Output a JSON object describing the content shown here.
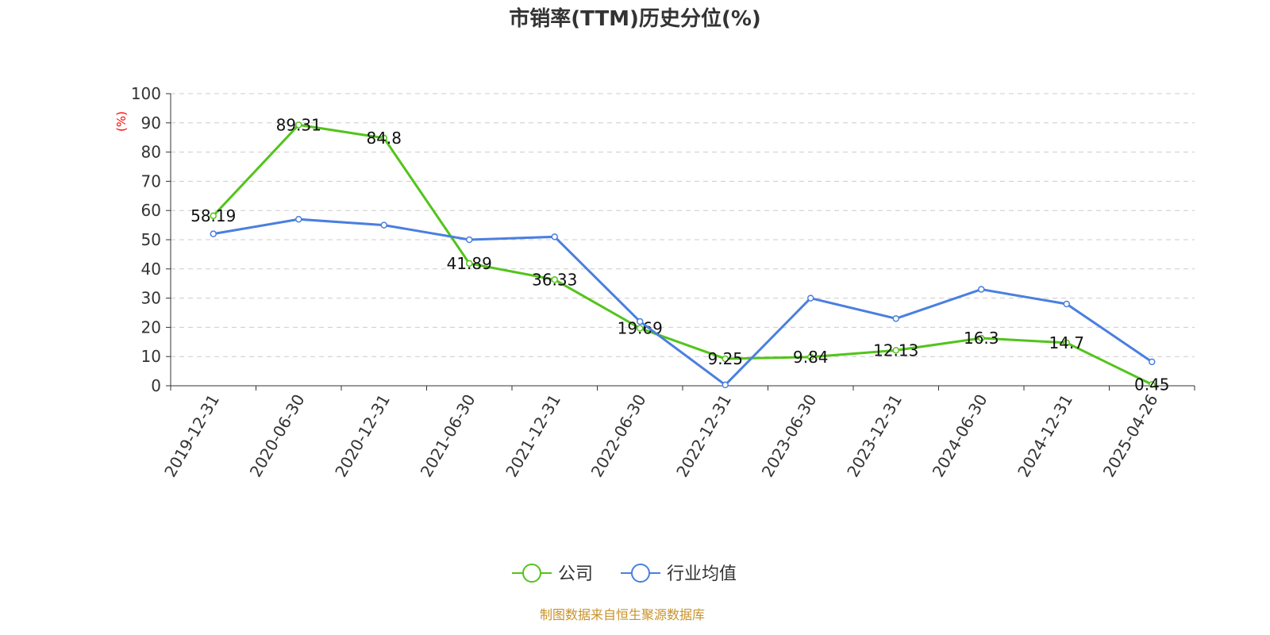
{
  "chart_data": {
    "type": "line",
    "title": "市销率(TTM)历史分位(%)",
    "ylabel": "(%)",
    "ylim": [
      0,
      100
    ],
    "yticks": [
      0,
      10,
      20,
      30,
      40,
      50,
      60,
      70,
      80,
      90,
      100
    ],
    "grid": true,
    "legend_placement": "bottom",
    "categories": [
      "2019-12-31",
      "2020-06-30",
      "2020-12-31",
      "2021-06-30",
      "2021-12-31",
      "2022-06-30",
      "2022-12-31",
      "2023-06-30",
      "2023-12-31",
      "2024-06-30",
      "2024-12-31",
      "2025-04-26"
    ],
    "series": [
      {
        "name": "公司",
        "color": "#52c41a",
        "labels": true,
        "values": [
          58.19,
          89.31,
          84.8,
          41.89,
          36.33,
          19.69,
          9.25,
          9.84,
          12.13,
          16.3,
          14.7,
          0.45
        ]
      },
      {
        "name": "行业均值",
        "color": "#4a7fe0",
        "labels": false,
        "values": [
          52,
          57,
          55,
          50,
          51,
          22,
          0.3,
          30,
          23,
          33,
          28,
          8.2
        ]
      }
    ]
  },
  "source": "制图数据来自恒生聚源数据库"
}
